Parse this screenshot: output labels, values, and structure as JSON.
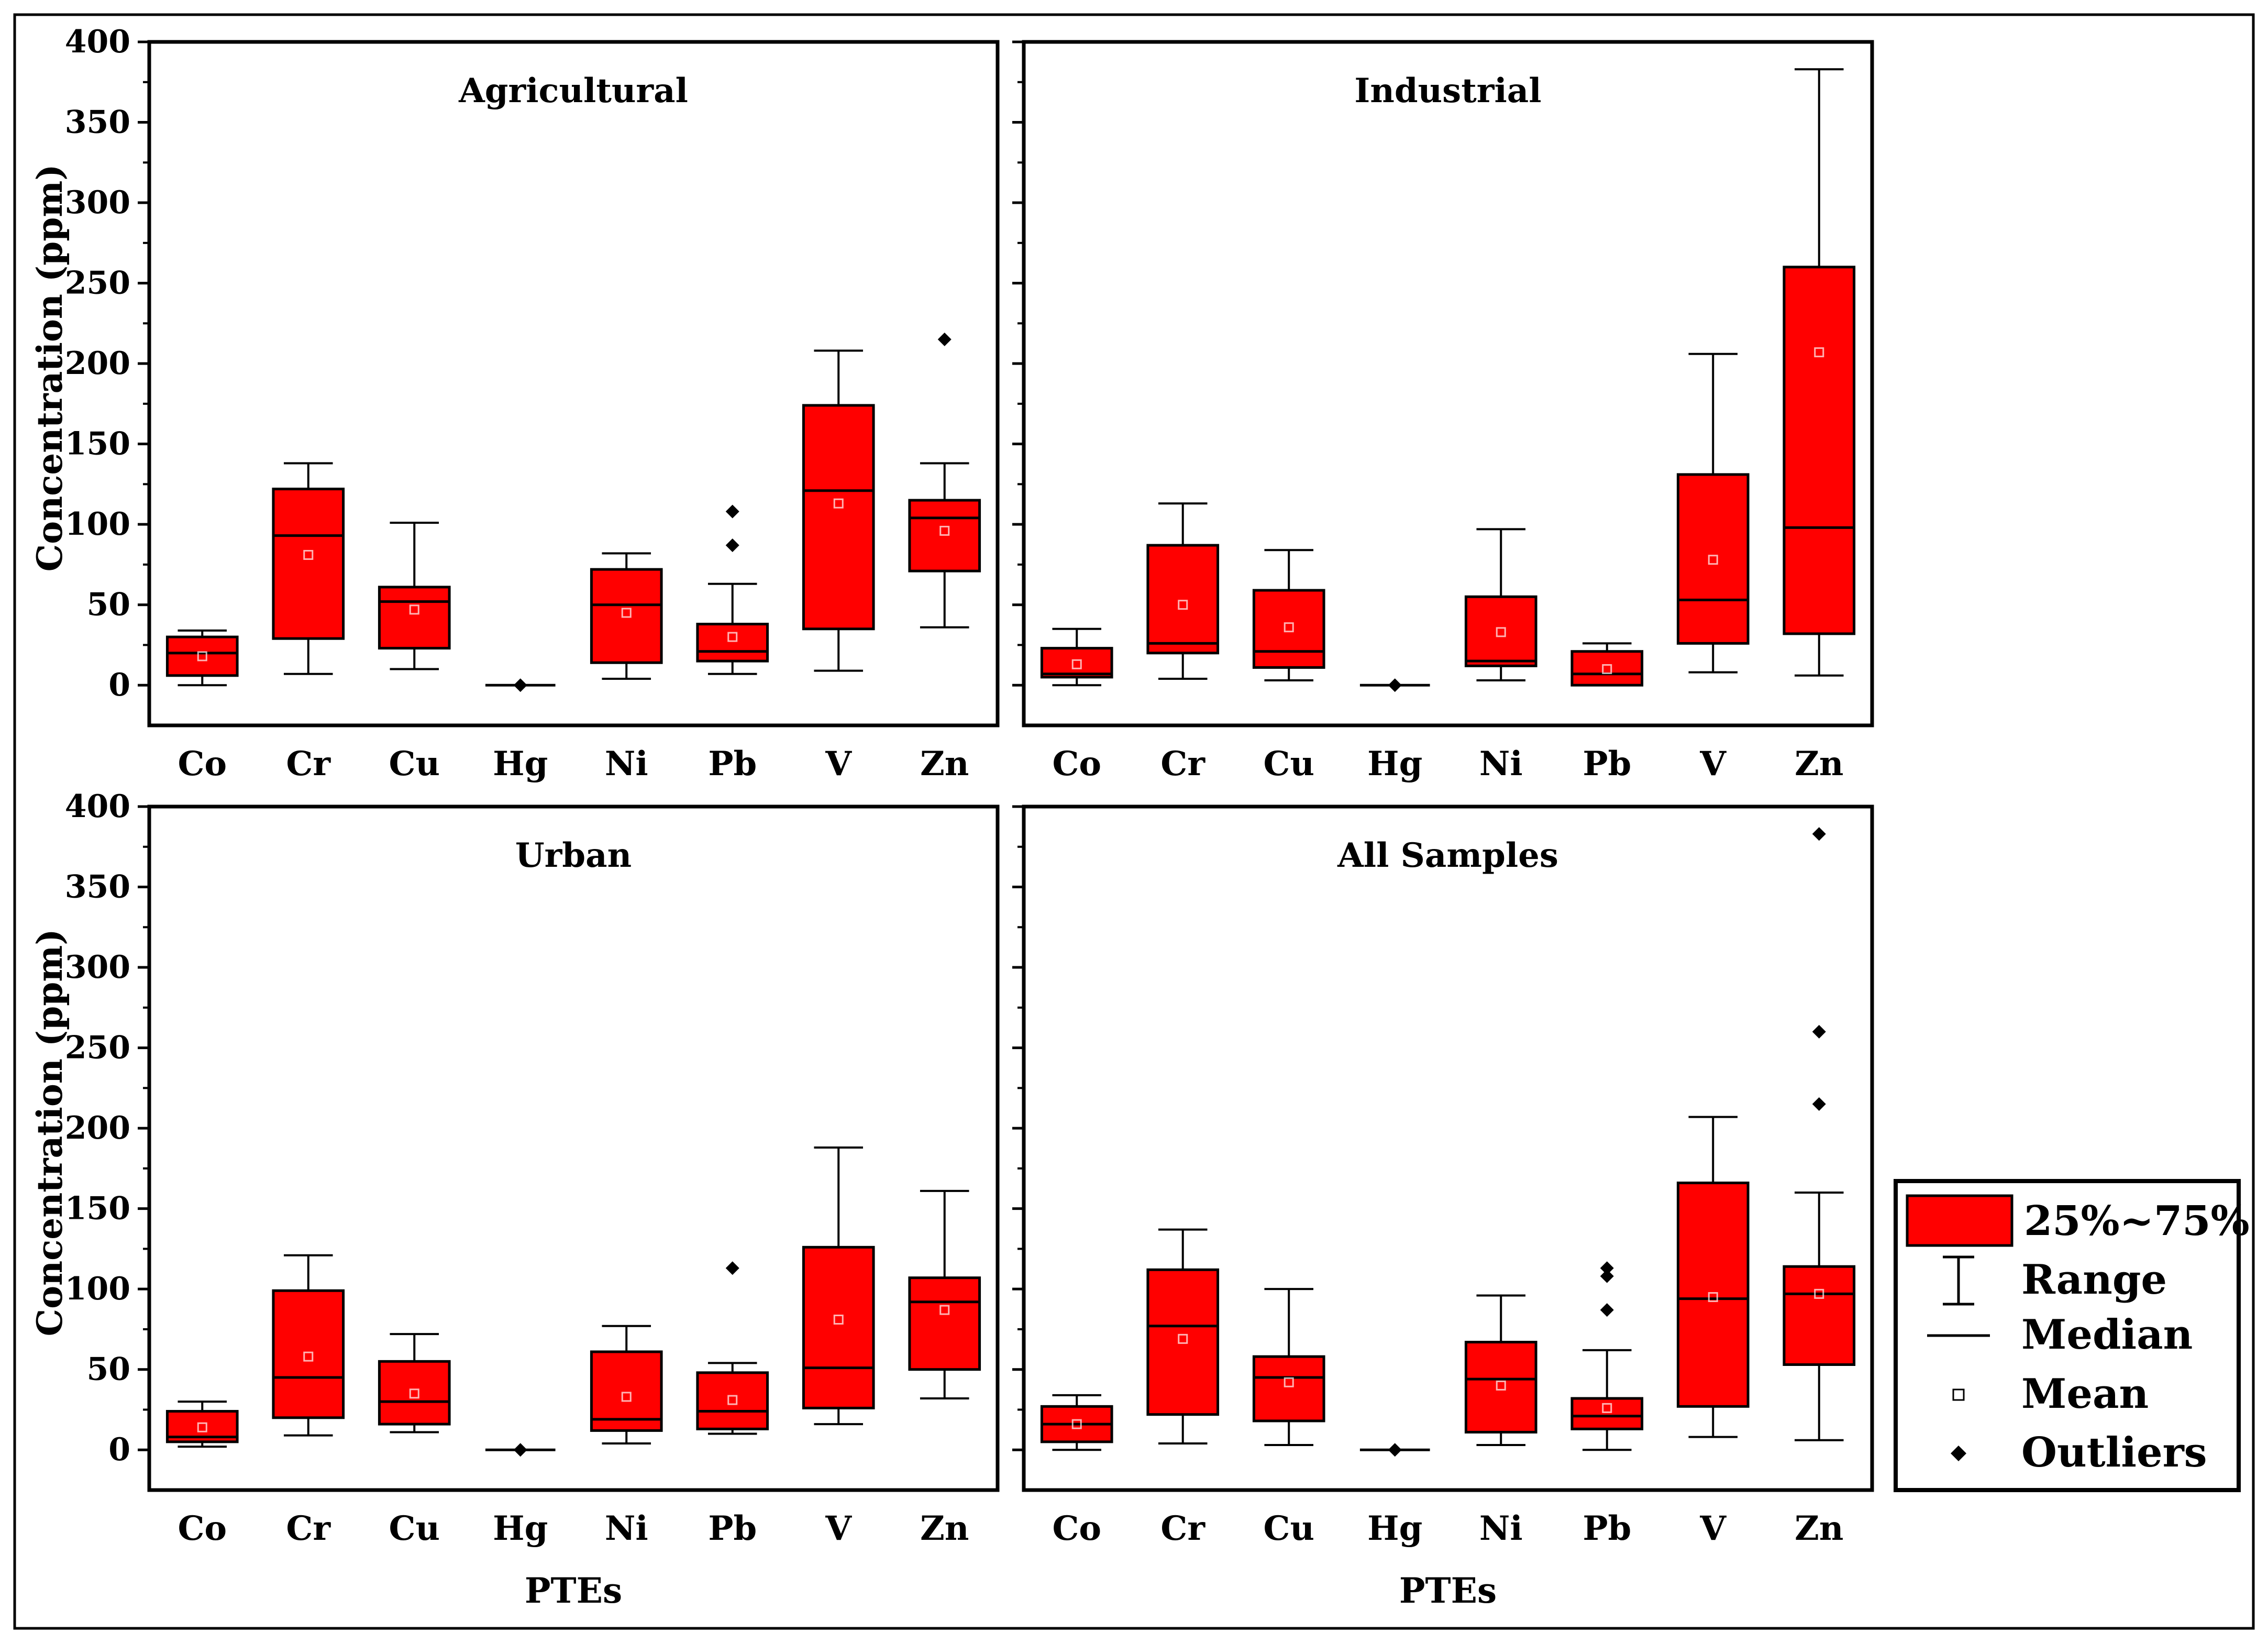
{
  "chart_data": {
    "type": "box",
    "ylabel": "Concentration (ppm)",
    "xlabel": "PTEs",
    "ylim": [
      -25,
      400
    ],
    "yticks": [
      0,
      50,
      100,
      150,
      200,
      250,
      300,
      350,
      400
    ],
    "categories": [
      "Co",
      "Cr",
      "Cu",
      "Hg",
      "Ni",
      "Pb",
      "V",
      "Zn"
    ],
    "colors": {
      "box": "#ff0000",
      "stroke": "#000000"
    },
    "legend": {
      "position": "right",
      "box_label": "25%~75%",
      "range_label": "Range",
      "median_label": "Median",
      "mean_label": "Mean",
      "outlier_label": "Outliers"
    },
    "panels": [
      {
        "title": "Agricultural",
        "boxes": [
          {
            "category": "Co",
            "min": 0,
            "q1": 6,
            "median": 20,
            "q3": 30,
            "max": 34,
            "mean": 18,
            "outliers": []
          },
          {
            "category": "Cr",
            "min": 7,
            "q1": 29,
            "median": 93,
            "q3": 122,
            "max": 138,
            "mean": 81,
            "outliers": []
          },
          {
            "category": "Cu",
            "min": 10,
            "q1": 23,
            "median": 52,
            "q3": 61,
            "max": 101,
            "mean": 47,
            "outliers": []
          },
          {
            "category": "Hg",
            "min": 0,
            "q1": 0,
            "median": 0,
            "q3": 0,
            "max": 0,
            "mean": 0,
            "outliers": [
              0
            ]
          },
          {
            "category": "Ni",
            "min": 4,
            "q1": 14,
            "median": 50,
            "q3": 72,
            "max": 82,
            "mean": 45,
            "outliers": []
          },
          {
            "category": "Pb",
            "min": 7,
            "q1": 15,
            "median": 21,
            "q3": 38,
            "max": 63,
            "mean": 30,
            "outliers": [
              87,
              108
            ]
          },
          {
            "category": "V",
            "min": 9,
            "q1": 35,
            "median": 121,
            "q3": 174,
            "max": 208,
            "mean": 113,
            "outliers": []
          },
          {
            "category": "Zn",
            "min": 36,
            "q1": 71,
            "median": 104,
            "q3": 115,
            "max": 138,
            "mean": 96,
            "outliers": [
              215
            ]
          }
        ]
      },
      {
        "title": "Industrial",
        "boxes": [
          {
            "category": "Co",
            "min": 0,
            "q1": 5,
            "median": 7,
            "q3": 23,
            "max": 35,
            "mean": 13,
            "outliers": []
          },
          {
            "category": "Cr",
            "min": 4,
            "q1": 20,
            "median": 26,
            "q3": 87,
            "max": 113,
            "mean": 50,
            "outliers": []
          },
          {
            "category": "Cu",
            "min": 3,
            "q1": 11,
            "median": 21,
            "q3": 59,
            "max": 84,
            "mean": 36,
            "outliers": []
          },
          {
            "category": "Hg",
            "min": 0,
            "q1": 0,
            "median": 0,
            "q3": 0,
            "max": 0,
            "mean": 0,
            "outliers": [
              0
            ]
          },
          {
            "category": "Ni",
            "min": 3,
            "q1": 12,
            "median": 15,
            "q3": 55,
            "max": 97,
            "mean": 33,
            "outliers": []
          },
          {
            "category": "Pb",
            "min": 0,
            "q1": 0,
            "median": 7,
            "q3": 21,
            "max": 26,
            "mean": 10,
            "outliers": []
          },
          {
            "category": "V",
            "min": 8,
            "q1": 26,
            "median": 53,
            "q3": 131,
            "max": 206,
            "mean": 78,
            "outliers": []
          },
          {
            "category": "Zn",
            "min": 6,
            "q1": 32,
            "median": 98,
            "q3": 260,
            "max": 383,
            "mean": 207,
            "outliers": []
          }
        ]
      },
      {
        "title": "Urban",
        "boxes": [
          {
            "category": "Co",
            "min": 2,
            "q1": 5,
            "median": 8,
            "q3": 24,
            "max": 30,
            "mean": 14,
            "outliers": []
          },
          {
            "category": "Cr",
            "min": 9,
            "q1": 20,
            "median": 45,
            "q3": 99,
            "max": 121,
            "mean": 58,
            "outliers": []
          },
          {
            "category": "Cu",
            "min": 11,
            "q1": 16,
            "median": 30,
            "q3": 55,
            "max": 72,
            "mean": 35,
            "outliers": []
          },
          {
            "category": "Hg",
            "min": 0,
            "q1": 0,
            "median": 0,
            "q3": 0,
            "max": 0,
            "mean": 0,
            "outliers": [
              0
            ]
          },
          {
            "category": "Ni",
            "min": 4,
            "q1": 12,
            "median": 19,
            "q3": 61,
            "max": 77,
            "mean": 33,
            "outliers": []
          },
          {
            "category": "Pb",
            "min": 10,
            "q1": 13,
            "median": 24,
            "q3": 48,
            "max": 54,
            "mean": 31,
            "outliers": [
              113
            ]
          },
          {
            "category": "V",
            "min": 16,
            "q1": 26,
            "median": 51,
            "q3": 126,
            "max": 188,
            "mean": 81,
            "outliers": []
          },
          {
            "category": "Zn",
            "min": 32,
            "q1": 50,
            "median": 92,
            "q3": 107,
            "max": 161,
            "mean": 87,
            "outliers": []
          }
        ]
      },
      {
        "title": "All Samples",
        "boxes": [
          {
            "category": "Co",
            "min": 0,
            "q1": 5,
            "median": 16,
            "q3": 27,
            "max": 34,
            "mean": 16,
            "outliers": []
          },
          {
            "category": "Cr",
            "min": 4,
            "q1": 22,
            "median": 77,
            "q3": 112,
            "max": 137,
            "mean": 69,
            "outliers": []
          },
          {
            "category": "Cu",
            "min": 3,
            "q1": 18,
            "median": 45,
            "q3": 58,
            "max": 100,
            "mean": 42,
            "outliers": []
          },
          {
            "category": "Hg",
            "min": 0,
            "q1": 0,
            "median": 0,
            "q3": 0,
            "max": 0,
            "mean": 0,
            "outliers": [
              0
            ]
          },
          {
            "category": "Ni",
            "min": 3,
            "q1": 11,
            "median": 44,
            "q3": 67,
            "max": 96,
            "mean": 40,
            "outliers": []
          },
          {
            "category": "Pb",
            "min": 0,
            "q1": 13,
            "median": 21,
            "q3": 32,
            "max": 62,
            "mean": 26,
            "outliers": [
              87,
              108,
              113
            ]
          },
          {
            "category": "V",
            "min": 8,
            "q1": 27,
            "median": 94,
            "q3": 166,
            "max": 207,
            "mean": 95,
            "outliers": []
          },
          {
            "category": "Zn",
            "min": 6,
            "q1": 53,
            "median": 97,
            "q3": 114,
            "max": 160,
            "mean": 97,
            "outliers": [
              215,
              260,
              383
            ]
          }
        ]
      }
    ]
  }
}
